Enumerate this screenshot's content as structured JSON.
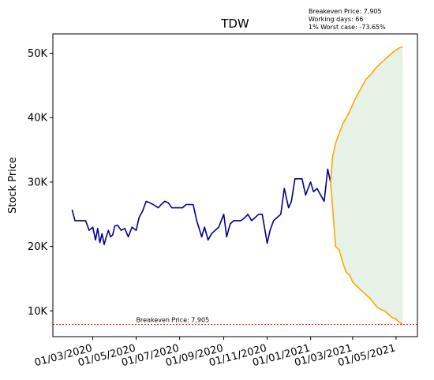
{
  "chart_data": {
    "type": "line",
    "title": "TDW",
    "xlabel": "",
    "ylabel": "Stock Price",
    "x_range": [
      "2020-01-05",
      "2021-05-31"
    ],
    "ylim": [
      6000,
      53000
    ],
    "y_ticks": [
      10000,
      20000,
      30000,
      40000,
      50000
    ],
    "y_tick_labels": [
      "10K",
      "20K",
      "30K",
      "40K",
      "50K"
    ],
    "x_ticks": [
      "2020-03-01",
      "2020-05-01",
      "2020-07-01",
      "2020-09-01",
      "2020-11-01",
      "2021-01-01",
      "2021-03-01",
      "2021-05-01"
    ],
    "x_tick_labels": [
      "01/03/2020",
      "01/05/2020",
      "01/07/2020",
      "01/09/2020",
      "01/11/2020",
      "01/01/2021",
      "01/03/2021",
      "01/05/2021"
    ],
    "annotations": {
      "stats": [
        "Breakeven Price: 7,905",
        "Working days: 66",
        "1% Worst case: -73.65%"
      ],
      "breakeven_label": "Breakeven Price: 7,905",
      "breakeven_value": 7905
    },
    "series": [
      {
        "color": "#00008b",
        "x": [
          "2020-02-01",
          "2020-02-05",
          "2020-02-10",
          "2020-02-15",
          "2020-02-20",
          "2020-02-25",
          "2020-03-01",
          "2020-03-05",
          "2020-03-08",
          "2020-03-11",
          "2020-03-14",
          "2020-03-17",
          "2020-03-20",
          "2020-03-23",
          "2020-03-26",
          "2020-03-29",
          "2020-04-01",
          "2020-04-05",
          "2020-04-10",
          "2020-04-15",
          "2020-04-20",
          "2020-04-25",
          "2020-05-01",
          "2020-05-05",
          "2020-05-10",
          "2020-05-15",
          "2020-05-20",
          "2020-05-25",
          "2020-06-01",
          "2020-06-05",
          "2020-06-10",
          "2020-06-15",
          "2020-06-20",
          "2020-06-25",
          "2020-07-01",
          "2020-07-05",
          "2020-07-10",
          "2020-07-15",
          "2020-07-20",
          "2020-07-25",
          "2020-08-01",
          "2020-08-05",
          "2020-08-10",
          "2020-08-15",
          "2020-08-20",
          "2020-08-25",
          "2020-09-01",
          "2020-09-05",
          "2020-09-10",
          "2020-09-15",
          "2020-09-20",
          "2020-09-25",
          "2020-10-01",
          "2020-10-05",
          "2020-10-10",
          "2020-10-15",
          "2020-10-20",
          "2020-10-25",
          "2020-11-01",
          "2020-11-05",
          "2020-11-10",
          "2020-11-15",
          "2020-11-20",
          "2020-11-25",
          "2020-12-01",
          "2020-12-05",
          "2020-12-10",
          "2020-12-15",
          "2020-12-20",
          "2020-12-25",
          "2021-01-01",
          "2021-01-05",
          "2021-01-10",
          "2021-01-15",
          "2021-01-20",
          "2021-01-25",
          "2021-01-29"
        ],
        "y": [
          25700,
          24000,
          24000,
          24000,
          24000,
          22500,
          23000,
          21000,
          22800,
          20600,
          22000,
          20300,
          21500,
          22500,
          21500,
          21800,
          23200,
          23300,
          22500,
          22800,
          21500,
          23000,
          22500,
          24500,
          25500,
          27000,
          26800,
          26500,
          26000,
          26500,
          27000,
          26800,
          26000,
          26000,
          26000,
          26000,
          26500,
          26500,
          26500,
          24000,
          21500,
          23000,
          21000,
          22000,
          22500,
          23000,
          25000,
          21500,
          23500,
          24000,
          24000,
          24000,
          24500,
          25000,
          24000,
          24500,
          25000,
          25000,
          20500,
          22500,
          24000,
          24500,
          25000,
          29000,
          26000,
          27000,
          30500,
          30500,
          30500,
          28000,
          30000,
          28500,
          29000,
          28000,
          27000,
          32000,
          30000
        ]
      },
      {
        "name": "upper",
        "color": "#ffa500",
        "x": [
          "2021-01-29",
          "2021-02-01",
          "2021-02-05",
          "2021-02-10",
          "2021-02-15",
          "2021-02-20",
          "2021-02-25",
          "2021-03-01",
          "2021-03-05",
          "2021-03-10",
          "2021-03-15",
          "2021-03-20",
          "2021-03-25",
          "2021-04-01",
          "2021-04-05",
          "2021-04-10",
          "2021-04-15",
          "2021-04-20",
          "2021-04-25",
          "2021-05-01",
          "2021-05-05",
          "2021-05-10"
        ],
        "y": [
          30000,
          34000,
          36000,
          37500,
          39000,
          40000,
          41000,
          42000,
          43000,
          44000,
          45000,
          46000,
          46500,
          47500,
          48000,
          48500,
          49000,
          49500,
          50000,
          50500,
          50800,
          51000
        ]
      },
      {
        "name": "lower",
        "color": "#ffa500",
        "x": [
          "2021-01-29",
          "2021-02-01",
          "2021-02-03",
          "2021-02-05",
          "2021-02-10",
          "2021-02-15",
          "2021-02-20",
          "2021-02-25",
          "2021-03-01",
          "2021-03-05",
          "2021-03-10",
          "2021-03-15",
          "2021-03-20",
          "2021-03-25",
          "2021-04-01",
          "2021-04-05",
          "2021-04-10",
          "2021-04-15",
          "2021-04-20",
          "2021-04-25",
          "2021-05-01",
          "2021-05-05",
          "2021-05-10"
        ],
        "y": [
          30000,
          26000,
          23000,
          20000,
          19500,
          17500,
          16000,
          15500,
          14500,
          14000,
          13500,
          13000,
          12500,
          12000,
          11000,
          10500,
          10200,
          10000,
          9500,
          9000,
          8700,
          8300,
          7900
        ]
      }
    ],
    "band_color": "#e5f2e5"
  }
}
